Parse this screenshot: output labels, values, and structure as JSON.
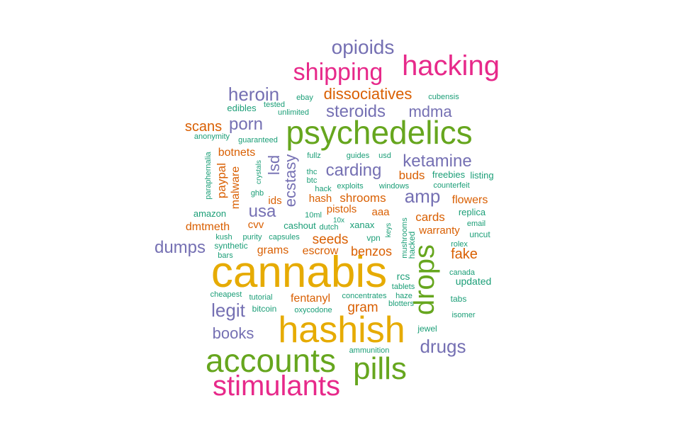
{
  "chart_data": {
    "type": "wordcloud",
    "palette": {
      "green": "#66A61E",
      "gold": "#E6AB02",
      "magenta": "#E7298A",
      "purple": "#7570B3",
      "orange": "#D95F02",
      "teal": "#1B9E77"
    },
    "words": [
      {
        "text": "cannabis",
        "color": "gold"
      },
      {
        "text": "hashish",
        "color": "gold"
      },
      {
        "text": "psychedelics",
        "color": "green"
      },
      {
        "text": "accounts",
        "color": "green"
      },
      {
        "text": "pills",
        "color": "green"
      },
      {
        "text": "drops",
        "color": "green"
      },
      {
        "text": "stimulants",
        "color": "magenta"
      },
      {
        "text": "hacking",
        "color": "magenta"
      },
      {
        "text": "shipping",
        "color": "magenta"
      },
      {
        "text": "opioids",
        "color": "purple"
      },
      {
        "text": "heroin",
        "color": "purple"
      },
      {
        "text": "steroids",
        "color": "purple"
      },
      {
        "text": "mdma",
        "color": "purple"
      },
      {
        "text": "porn",
        "color": "purple"
      },
      {
        "text": "ketamine",
        "color": "purple"
      },
      {
        "text": "carding",
        "color": "purple"
      },
      {
        "text": "amp",
        "color": "purple"
      },
      {
        "text": "usa",
        "color": "purple"
      },
      {
        "text": "lsd",
        "color": "purple"
      },
      {
        "text": "ecstasy",
        "color": "purple"
      },
      {
        "text": "dumps",
        "color": "purple"
      },
      {
        "text": "legit",
        "color": "purple"
      },
      {
        "text": "books",
        "color": "purple"
      },
      {
        "text": "drugs",
        "color": "purple"
      },
      {
        "text": "dissociatives",
        "color": "orange"
      },
      {
        "text": "scans",
        "color": "orange"
      },
      {
        "text": "botnets",
        "color": "orange"
      },
      {
        "text": "paypal",
        "color": "orange"
      },
      {
        "text": "malware",
        "color": "orange"
      },
      {
        "text": "buds",
        "color": "orange"
      },
      {
        "text": "flowers",
        "color": "orange"
      },
      {
        "text": "ids",
        "color": "orange"
      },
      {
        "text": "hash",
        "color": "orange"
      },
      {
        "text": "shrooms",
        "color": "orange"
      },
      {
        "text": "pistols",
        "color": "orange"
      },
      {
        "text": "aaa",
        "color": "orange"
      },
      {
        "text": "cards",
        "color": "orange"
      },
      {
        "text": "dmtmeth",
        "color": "orange"
      },
      {
        "text": "cvv",
        "color": "orange"
      },
      {
        "text": "seeds",
        "color": "orange"
      },
      {
        "text": "warranty",
        "color": "orange"
      },
      {
        "text": "fake",
        "color": "orange"
      },
      {
        "text": "grams",
        "color": "orange"
      },
      {
        "text": "escrow",
        "color": "orange"
      },
      {
        "text": "benzos",
        "color": "orange"
      },
      {
        "text": "fentanyl",
        "color": "orange"
      },
      {
        "text": "gram",
        "color": "orange"
      },
      {
        "text": "ebay",
        "color": "teal"
      },
      {
        "text": "tested",
        "color": "teal"
      },
      {
        "text": "edibles",
        "color": "teal"
      },
      {
        "text": "unlimited",
        "color": "teal"
      },
      {
        "text": "cubensis",
        "color": "teal"
      },
      {
        "text": "anonymity",
        "color": "teal"
      },
      {
        "text": "guaranteed",
        "color": "teal"
      },
      {
        "text": "paraphernalia",
        "color": "teal"
      },
      {
        "text": "crystals",
        "color": "teal"
      },
      {
        "text": "fullz",
        "color": "teal"
      },
      {
        "text": "guides",
        "color": "teal"
      },
      {
        "text": "usd",
        "color": "teal"
      },
      {
        "text": "thc",
        "color": "teal"
      },
      {
        "text": "btc",
        "color": "teal"
      },
      {
        "text": "freebies",
        "color": "teal"
      },
      {
        "text": "listing",
        "color": "teal"
      },
      {
        "text": "exploits",
        "color": "teal"
      },
      {
        "text": "windows",
        "color": "teal"
      },
      {
        "text": "counterfeit",
        "color": "teal"
      },
      {
        "text": "ghb",
        "color": "teal"
      },
      {
        "text": "hack",
        "color": "teal"
      },
      {
        "text": "amazon",
        "color": "teal"
      },
      {
        "text": "10ml",
        "color": "teal"
      },
      {
        "text": "10x",
        "color": "teal"
      },
      {
        "text": "replica",
        "color": "teal"
      },
      {
        "text": "email",
        "color": "teal"
      },
      {
        "text": "kush",
        "color": "teal"
      },
      {
        "text": "purity",
        "color": "teal"
      },
      {
        "text": "capsules",
        "color": "teal"
      },
      {
        "text": "cashout",
        "color": "teal"
      },
      {
        "text": "dutch",
        "color": "teal"
      },
      {
        "text": "xanax",
        "color": "teal"
      },
      {
        "text": "keys",
        "color": "teal"
      },
      {
        "text": "uncut",
        "color": "teal"
      },
      {
        "text": "synthetic",
        "color": "teal"
      },
      {
        "text": "vpn",
        "color": "teal"
      },
      {
        "text": "mushrooms",
        "color": "teal"
      },
      {
        "text": "hacked",
        "color": "teal"
      },
      {
        "text": "rolex",
        "color": "teal"
      },
      {
        "text": "bars",
        "color": "teal"
      },
      {
        "text": "canada",
        "color": "teal"
      },
      {
        "text": "rcs",
        "color": "teal"
      },
      {
        "text": "updated",
        "color": "teal"
      },
      {
        "text": "tablets",
        "color": "teal"
      },
      {
        "text": "cheapest",
        "color": "teal"
      },
      {
        "text": "tutorial",
        "color": "teal"
      },
      {
        "text": "concentrates",
        "color": "teal"
      },
      {
        "text": "haze",
        "color": "teal"
      },
      {
        "text": "tabs",
        "color": "teal"
      },
      {
        "text": "bitcoin",
        "color": "teal"
      },
      {
        "text": "oxycodone",
        "color": "teal"
      },
      {
        "text": "blotters",
        "color": "teal"
      },
      {
        "text": "isomer",
        "color": "teal"
      },
      {
        "text": "jewel",
        "color": "teal"
      },
      {
        "text": "ammunition",
        "color": "teal"
      }
    ]
  }
}
